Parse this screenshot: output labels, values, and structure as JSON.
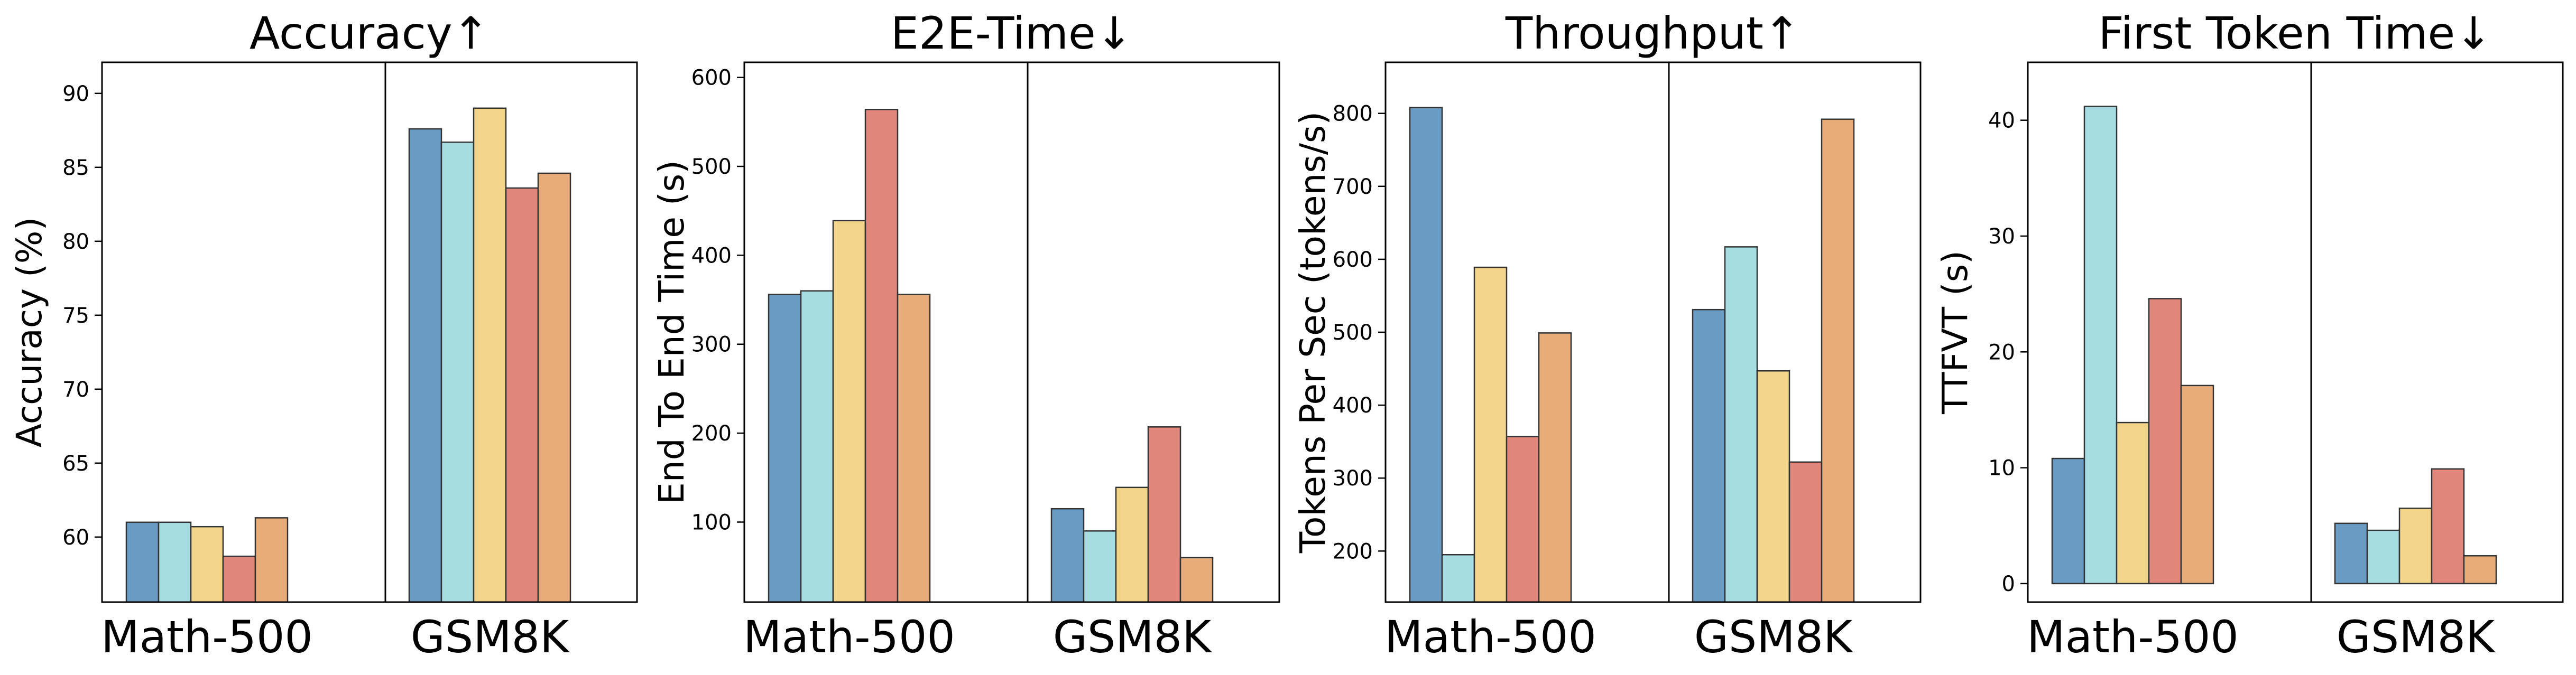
{
  "chart_data": [
    {
      "type": "bar",
      "title": "Accuracy↑",
      "xlabel": "",
      "ylabel": "Accuracy (%)",
      "categories": [
        "Math-500",
        "GSM8K"
      ],
      "series": [
        {
          "values": [
            61.0,
            87.6
          ],
          "color": "#6a9bc3"
        },
        {
          "values": [
            61.0,
            86.7
          ],
          "color": "#a8dce3"
        },
        {
          "values": [
            60.7,
            89.0
          ],
          "color": "#f3d58a"
        },
        {
          "values": [
            58.7,
            83.6
          ],
          "color": "#e0867a"
        },
        {
          "values": [
            61.3,
            84.6
          ],
          "color": "#e8ac7b"
        }
      ],
      "ylim": [
        55.6,
        92.1
      ],
      "yticks": [
        60,
        65,
        70,
        75,
        80,
        85,
        90
      ]
    },
    {
      "type": "bar",
      "title": "E2E-Time↓",
      "xlabel": "",
      "ylabel": "End To End Time (s)",
      "categories": [
        "Math-500",
        "GSM8K"
      ],
      "series": [
        {
          "values": [
            356,
            115
          ],
          "color": "#6a9bc3"
        },
        {
          "values": [
            360,
            90
          ],
          "color": "#a8dce3"
        },
        {
          "values": [
            439,
            139
          ],
          "color": "#f3d58a"
        },
        {
          "values": [
            564,
            207
          ],
          "color": "#e0867a"
        },
        {
          "values": [
            356,
            60
          ],
          "color": "#e8ac7b"
        }
      ],
      "ylim": [
        10,
        617
      ],
      "yticks": [
        100,
        200,
        300,
        400,
        500,
        600
      ]
    },
    {
      "type": "bar",
      "title": "Throughput↑",
      "xlabel": "",
      "ylabel": "Tokens Per Sec (tokens/s)",
      "categories": [
        "Math-500",
        "GSM8K"
      ],
      "series": [
        {
          "values": [
            808,
            531
          ],
          "color": "#6a9bc3"
        },
        {
          "values": [
            195,
            617
          ],
          "color": "#a8dce3"
        },
        {
          "values": [
            589,
            447
          ],
          "color": "#f3d58a"
        },
        {
          "values": [
            357,
            322
          ],
          "color": "#e0867a"
        },
        {
          "values": [
            499,
            792
          ],
          "color": "#e8ac7b"
        }
      ],
      "ylim": [
        130,
        870
      ],
      "yticks": [
        200,
        300,
        400,
        500,
        600,
        700,
        800
      ]
    },
    {
      "type": "bar",
      "title": "First Token Time↓",
      "xlabel": "",
      "ylabel": "TTFVT (s)",
      "categories": [
        "Math-500",
        "GSM8K"
      ],
      "series": [
        {
          "values": [
            10.8,
            5.2
          ],
          "color": "#6a9bc3"
        },
        {
          "values": [
            41.2,
            4.6
          ],
          "color": "#a8dce3"
        },
        {
          "values": [
            13.9,
            6.5
          ],
          "color": "#f3d58a"
        },
        {
          "values": [
            24.6,
            9.9
          ],
          "color": "#e0867a"
        },
        {
          "values": [
            17.1,
            2.4
          ],
          "color": "#e8ac7b"
        }
      ],
      "ylim": [
        -1.6,
        45.0
      ],
      "yticks": [
        0,
        10,
        20,
        30,
        40
      ]
    }
  ]
}
